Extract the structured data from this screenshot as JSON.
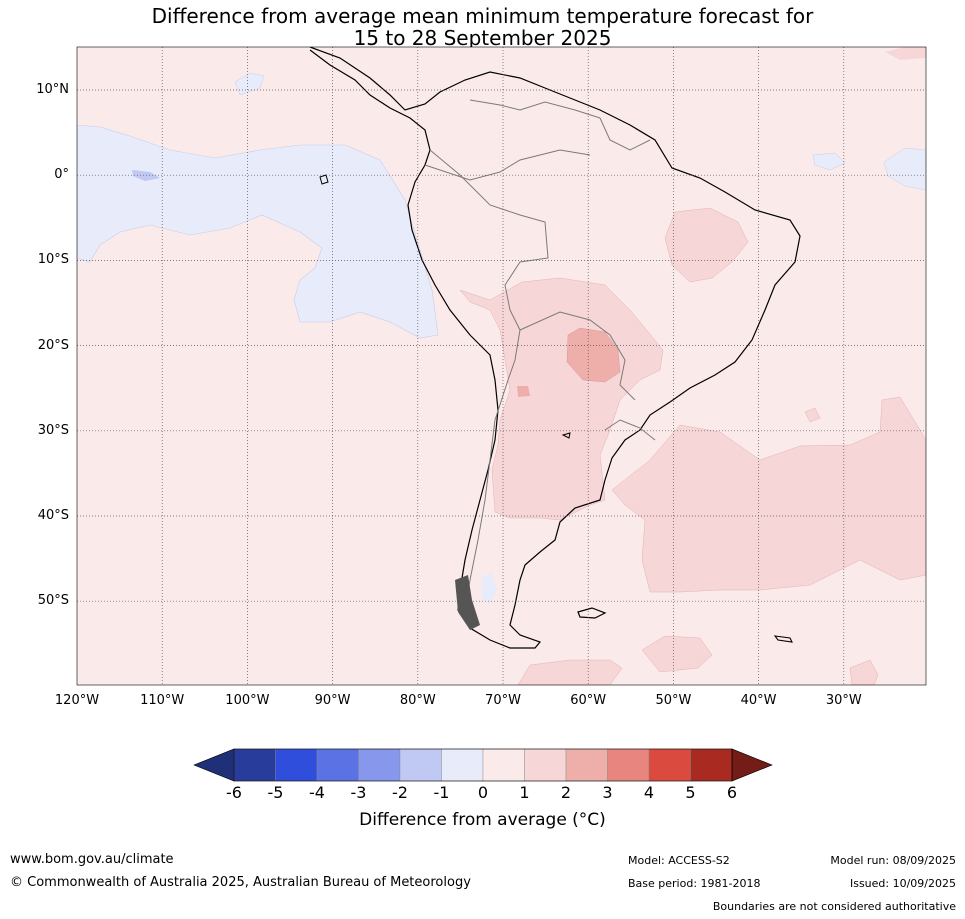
{
  "title_line1": "Difference from average mean minimum temperature forecast for",
  "title_line2": "15 to 28 September 2025",
  "lat_labels": [
    "10°N",
    "0°",
    "10°S",
    "20°S",
    "30°S",
    "40°S",
    "50°S"
  ],
  "lon_labels": [
    "120°W",
    "110°W",
    "100°W",
    "90°W",
    "80°W",
    "70°W",
    "60°W",
    "50°W",
    "40°W",
    "30°W"
  ],
  "colorbar": {
    "ticks": [
      "-6",
      "-5",
      "-4",
      "-3",
      "-2",
      "-1",
      "0",
      "1",
      "2",
      "3",
      "4",
      "5",
      "6"
    ],
    "colors": [
      "#283c9c",
      "#2f4edc",
      "#5a72e4",
      "#8798ec",
      "#c0c8f4",
      "#e8ebfa",
      "#fbeaea",
      "#f6d6d6",
      "#eeaeaa",
      "#e8857e",
      "#da4a3e",
      "#a82a20"
    ],
    "under_color": "#1f2f78",
    "over_color": "#741c17",
    "title": "Difference from average (°C)"
  },
  "map_colors": {
    "ocean_base": "#fbeaea",
    "cool": "#e8ebfa",
    "warm": "#f6d6d6",
    "warmer": "#eeaeaa",
    "cold_spot": "#c0c8f4"
  },
  "footer": {
    "website": "www.bom.gov.au/climate",
    "copyright": "© Commonwealth of Australia 2025, Australian Bureau of Meteorology",
    "model": "Model: ACCESS-S2",
    "base_period": "Base period: 1981-2018",
    "model_run": "Model run: 08/09/2025",
    "issued": "Issued: 10/09/2025",
    "disclaimer": "Boundaries are not considered authoritative"
  }
}
